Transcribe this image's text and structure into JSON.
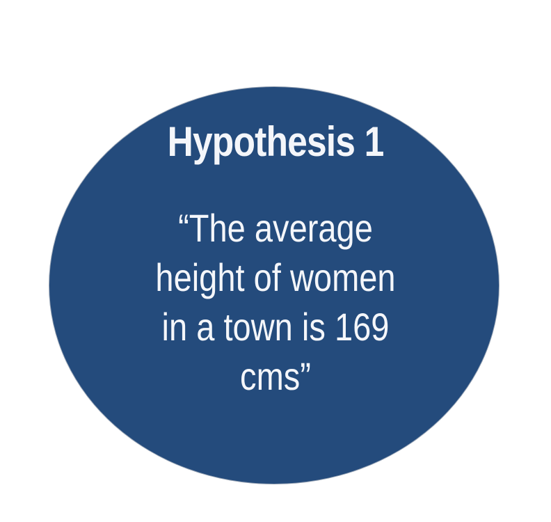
{
  "hypothesis": {
    "title": "Hypothesis 1",
    "statement_lines": [
      "“The average",
      "height of women",
      "in a town is 169",
      "cms”"
    ]
  },
  "colors": {
    "circle_fill": "#244b7c",
    "circle_border": "#9aa6b6",
    "text": "#f4f6fa",
    "background": "#ffffff"
  }
}
